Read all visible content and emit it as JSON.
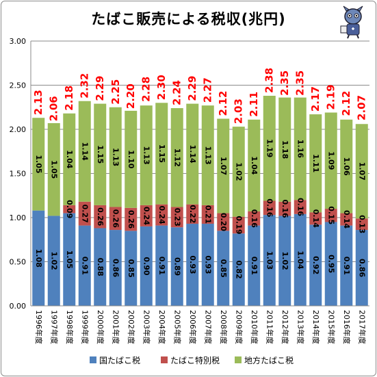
{
  "title": "たばこ販売による税収(兆円)",
  "chart_data": {
    "type": "bar",
    "stacked": true,
    "title": "たばこ販売による税収(兆円)",
    "ylim": [
      0,
      3.0
    ],
    "yticks": [
      "0.00",
      "0.50",
      "1.00",
      "1.50",
      "2.00",
      "2.50",
      "3.00"
    ],
    "grid": true,
    "legend_position": "bottom",
    "categories": [
      "1996年度",
      "1997年度",
      "1998年度",
      "1999年度",
      "2000年度",
      "2001年度",
      "2002年度",
      "2003年度",
      "2004年度",
      "2005年度",
      "2006年度",
      "2007年度",
      "2008年度",
      "2009年度",
      "2010年度",
      "2011年度",
      "2012年度",
      "2013年度",
      "2014年度",
      "2015年度",
      "2016年度",
      "2017年度"
    ],
    "series": [
      {
        "name": "国たばこ税",
        "color": "#4f81bd",
        "values": [
          1.08,
          1.02,
          1.05,
          0.91,
          0.88,
          0.86,
          0.85,
          0.9,
          0.91,
          0.89,
          0.93,
          0.93,
          0.85,
          0.82,
          0.91,
          1.03,
          1.02,
          1.04,
          0.92,
          0.95,
          0.91,
          0.86
        ],
        "labels": [
          "1.08",
          "1.02",
          "1.05",
          "0.91",
          "0.88",
          "0.86",
          "0.85",
          "0.90",
          "0.91",
          "0.89",
          "0.93",
          "0.93",
          "0.85",
          "0.82",
          "0.91",
          "1.03",
          "1.02",
          "1.04",
          "0.92",
          "0.95",
          "0.91",
          "0.86"
        ]
      },
      {
        "name": "たばこ特別税",
        "color": "#c0504d",
        "values": [
          0,
          0,
          0.09,
          0.27,
          0.26,
          0.26,
          0.26,
          0.24,
          0.24,
          0.23,
          0.22,
          0.21,
          0.2,
          0.19,
          0.16,
          0.16,
          0.16,
          0.16,
          0.14,
          0.15,
          0.14,
          0.13
        ],
        "labels": [
          "",
          "",
          "0.09",
          "0.27",
          "0.26",
          "0.26",
          "0.26",
          "0.24",
          "0.24",
          "0.23",
          "0.22",
          "0.21",
          "0.20",
          "0.19",
          "0.16",
          "0.16",
          "0.16",
          "0.16",
          "0.14",
          "0.15",
          "0.14",
          "0.13"
        ]
      },
      {
        "name": "地方たばこ税",
        "color": "#9bbb59",
        "values": [
          1.05,
          1.05,
          1.04,
          1.14,
          1.15,
          1.13,
          1.1,
          1.13,
          1.15,
          1.12,
          1.14,
          1.13,
          1.07,
          1.02,
          1.04,
          1.19,
          1.18,
          1.16,
          1.11,
          1.09,
          1.06,
          1.07
        ],
        "labels": [
          "1.05",
          "1.05",
          "1.04",
          "1.14",
          "1.15",
          "1.13",
          "1.10",
          "1.13",
          "1.15",
          "1.12",
          "1.14",
          "1.13",
          "1.07",
          "1.02",
          "1.04",
          "1.19",
          "1.18",
          "1.16",
          "1.11",
          "1.09",
          "1.06",
          "1.07"
        ]
      }
    ],
    "totals": [
      2.13,
      2.06,
      2.18,
      2.32,
      2.29,
      2.25,
      2.2,
      2.28,
      2.3,
      2.24,
      2.29,
      2.27,
      2.12,
      2.03,
      2.11,
      2.38,
      2.35,
      2.35,
      2.17,
      2.19,
      2.12,
      2.07
    ],
    "total_labels": [
      "2.13",
      "2.06",
      "2.18",
      "2.32",
      "2.29",
      "2.25",
      "2.20",
      "2.28",
      "2.30",
      "2.24",
      "2.29",
      "2.27",
      "2.12",
      "2.03",
      "2.11",
      "2.38",
      "2.35",
      "2.35",
      "2.17",
      "2.19",
      "2.12",
      "2.07"
    ],
    "total_label_color": "#ff0000"
  }
}
